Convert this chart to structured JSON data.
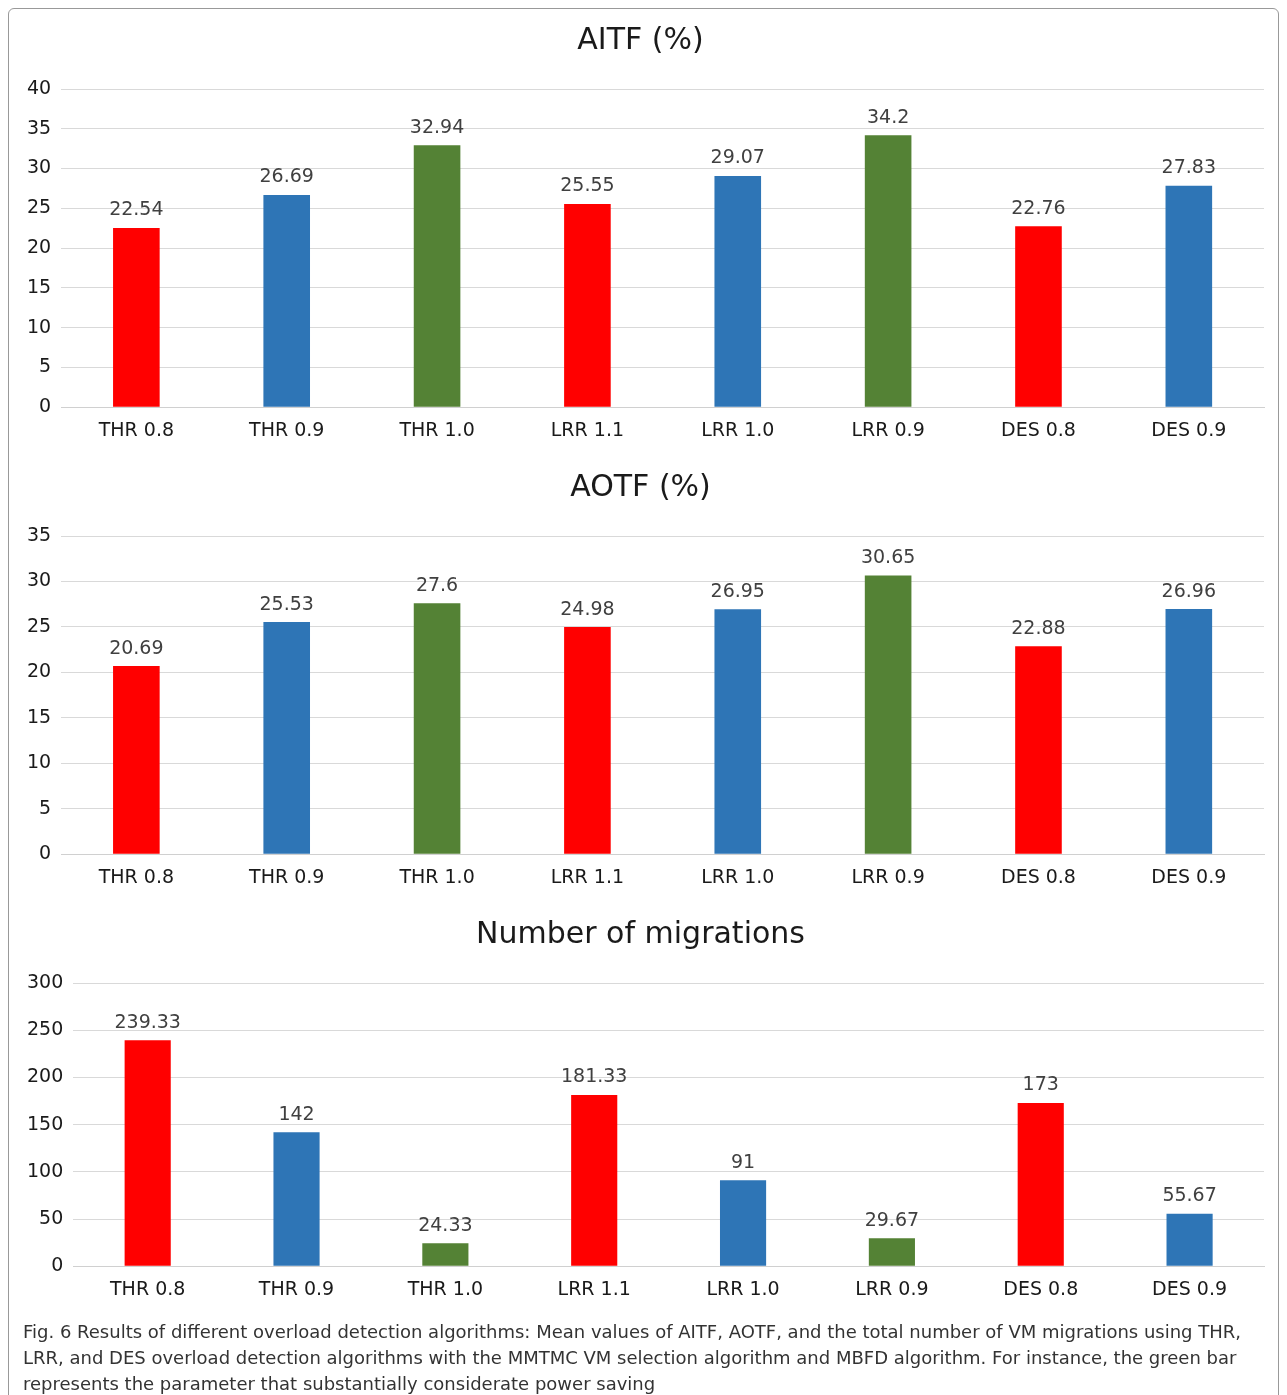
{
  "chart_data": [
    {
      "type": "bar",
      "title": "AITF (%)",
      "categories": [
        "THR 0.8",
        "THR 0.9",
        "THR 1.0",
        "LRR 1.1",
        "LRR 1.0",
        "LRR 0.9",
        "DES 0.8",
        "DES 0.9"
      ],
      "values": [
        22.54,
        26.69,
        32.94,
        25.55,
        29.07,
        34.2,
        22.76,
        27.83
      ],
      "colors": [
        "#ff0000",
        "#2e75b6",
        "#548235",
        "#ff0000",
        "#2e75b6",
        "#548235",
        "#ff0000",
        "#2e75b6"
      ],
      "ylim": [
        0,
        40
      ],
      "yticks": [
        0,
        5,
        10,
        15,
        20,
        25,
        30,
        35,
        40
      ],
      "grid": "y",
      "data_labels": true
    },
    {
      "type": "bar",
      "title": "AOTF (%)",
      "categories": [
        "THR 0.8",
        "THR 0.9",
        "THR 1.0",
        "LRR 1.1",
        "LRR 1.0",
        "LRR 0.9",
        "DES 0.8",
        "DES 0.9"
      ],
      "values": [
        20.69,
        25.53,
        27.6,
        24.98,
        26.95,
        30.65,
        22.88,
        26.96
      ],
      "colors": [
        "#ff0000",
        "#2e75b6",
        "#548235",
        "#ff0000",
        "#2e75b6",
        "#548235",
        "#ff0000",
        "#2e75b6"
      ],
      "ylim": [
        0,
        35
      ],
      "yticks": [
        0,
        5,
        10,
        15,
        20,
        25,
        30,
        35
      ],
      "grid": "y",
      "data_labels": true
    },
    {
      "type": "bar",
      "title": "Number of migrations",
      "categories": [
        "THR 0.8",
        "THR 0.9",
        "THR 1.0",
        "LRR 1.1",
        "LRR 1.0",
        "LRR 0.9",
        "DES 0.8",
        "DES 0.9"
      ],
      "values": [
        239.33,
        142,
        24.33,
        181.33,
        91,
        29.67,
        173,
        55.67
      ],
      "colors": [
        "#ff0000",
        "#2e75b6",
        "#548235",
        "#ff0000",
        "#2e75b6",
        "#548235",
        "#ff0000",
        "#2e75b6"
      ],
      "ylim": [
        0,
        300
      ],
      "yticks": [
        0,
        50,
        100,
        150,
        200,
        250,
        300
      ],
      "grid": "y",
      "data_labels": true,
      "annotations": [
        "Fig. 6 Results of different overload detection algorithms: Mean values of AITF, AOTF, and the total number of VM migrations using THR, LRR, and DES overload detection algorithms with the MMTMC VM selection algorithm and MBFD algorithm. For instance, the green bar represents the parameter that substantially considerate power saving"
      ]
    }
  ]
}
